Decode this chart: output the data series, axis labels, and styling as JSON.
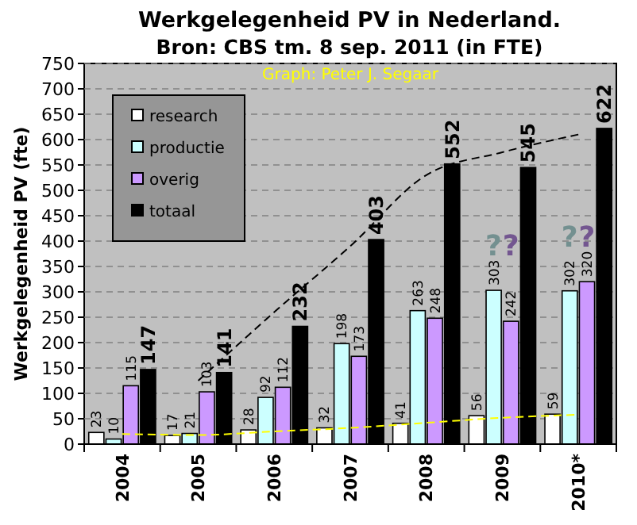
{
  "chart_data": {
    "type": "bar",
    "title": "Werkgelegenheid PV in Nederland.",
    "subtitle": "Bron: CBS tm. 8 sep. 2011 (in FTE)",
    "ylabel": "Werkgelegenheid PV (fte)",
    "annotations": [
      "Graph: Peter J. Segaar",
      "?",
      "?",
      "?",
      "?"
    ],
    "categories": [
      "2004",
      "2005",
      "2006",
      "2007",
      "2008",
      "2009",
      "2010*"
    ],
    "series": [
      {
        "name": "research",
        "color": "#ffffff",
        "values": [
          23,
          17,
          28,
          32,
          41,
          56,
          59
        ],
        "value_labels": [
          "23",
          "17",
          "28",
          "32",
          "41",
          "56",
          "59"
        ]
      },
      {
        "name": "productie",
        "color": "#ccffff",
        "values": [
          10,
          21,
          92,
          198,
          263,
          303,
          302
        ],
        "value_labels": [
          "10",
          "21",
          "92",
          "198",
          "263",
          "303",
          "302"
        ]
      },
      {
        "name": "overig",
        "color": "#cc99ff",
        "values": [
          115,
          103,
          112,
          173,
          248,
          242,
          320
        ],
        "value_labels": [
          "115",
          "103",
          "112",
          "173",
          "248",
          "242",
          "320"
        ]
      },
      {
        "name": "totaal",
        "color": "#000000",
        "values": [
          147,
          141,
          232,
          403,
          552,
          545,
          622
        ],
        "value_labels": [
          "147",
          "141",
          "232",
          "403",
          "552",
          "545",
          "622"
        ]
      },
      {
        "type": "line",
        "color": "#000000",
        "line_style": "dashed",
        "values": [
          null,
          125,
          260,
          390,
          530,
          575,
          610
        ]
      },
      {
        "type": "line",
        "color": "#ffff00",
        "line_style": "dashed",
        "values": [
          20,
          18,
          25,
          32,
          42,
          52,
          58
        ]
      }
    ],
    "ylim": [
      0,
      750
    ],
    "yticks": [
      0,
      50,
      100,
      150,
      200,
      250,
      300,
      350,
      400,
      450,
      500,
      550,
      600,
      650,
      700,
      750
    ],
    "grid": "y",
    "legend": "top left"
  }
}
